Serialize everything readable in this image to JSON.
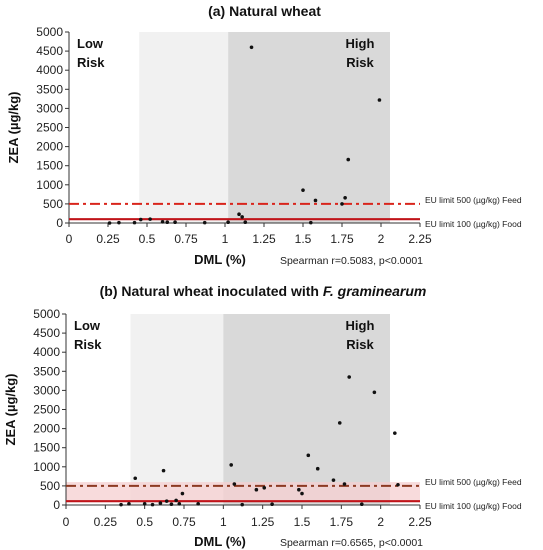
{
  "colors": {
    "low_zone": "#f1f1f1",
    "high_zone": "#d9d9d9",
    "feed_limit": "#d9251c",
    "food_limit": "#c0141a",
    "points": "#111111",
    "axis": "#333333",
    "band_b": "#f6cfd0"
  },
  "chart_data": [
    {
      "type": "scatter",
      "title_pre": "(a) Natural wheat",
      "title_italic": "",
      "xlabel": "DML (%)",
      "ylabel": "ZEA (µg/kg)",
      "xlim": [
        0,
        2.25
      ],
      "ylim": [
        0,
        5000
      ],
      "xticks": [
        "0",
        "0.25",
        "0.5",
        "0.75",
        "1",
        "1.25",
        "1.5",
        "1.75",
        "2",
        "2.25"
      ],
      "xtick_values": [
        0,
        0.25,
        0.5,
        0.75,
        1,
        1.25,
        1.5,
        1.75,
        2,
        2.25
      ],
      "yticks": [
        "0",
        "500",
        "1000",
        "1500",
        "2000",
        "2500",
        "3000",
        "3500",
        "4000",
        "4500",
        "5000"
      ],
      "ytick_values": [
        0,
        500,
        1000,
        1500,
        2000,
        2500,
        3000,
        3500,
        4000,
        4500,
        5000
      ],
      "zones": {
        "low_end": 0.45,
        "high_start": 1.02,
        "low_label": "Low Risk",
        "high_label": "High Risk"
      },
      "limits": [
        {
          "value": 500,
          "label": "EU limit 500 (µg/kg) Feed",
          "style": "dashdot"
        },
        {
          "value": 100,
          "label": "EU limit 100 (µg/kg) Food",
          "style": "solid"
        }
      ],
      "band": null,
      "stat": "Spearman r=0.5083, p<0.0001",
      "points": [
        [
          0.26,
          0
        ],
        [
          0.32,
          10
        ],
        [
          0.42,
          10
        ],
        [
          0.46,
          90
        ],
        [
          0.52,
          100
        ],
        [
          0.6,
          30
        ],
        [
          0.63,
          20
        ],
        [
          0.68,
          20
        ],
        [
          0.87,
          10
        ],
        [
          1.02,
          20
        ],
        [
          1.09,
          230
        ],
        [
          1.11,
          160
        ],
        [
          1.13,
          20
        ],
        [
          1.17,
          4600
        ],
        [
          1.5,
          860
        ],
        [
          1.55,
          10
        ],
        [
          1.58,
          590
        ],
        [
          1.75,
          500
        ],
        [
          1.77,
          660
        ],
        [
          1.79,
          1660
        ],
        [
          1.99,
          3220
        ]
      ]
    },
    {
      "type": "scatter",
      "title_pre": "(b) Natural wheat inoculated with ",
      "title_italic": "F. graminearum",
      "xlabel": "DML (%)",
      "ylabel": "ZEA (µg/kg)",
      "xlim": [
        0,
        2.25
      ],
      "ylim": [
        0,
        5000
      ],
      "xticks": [
        "0",
        "0.25",
        "0.5",
        "0.75",
        "1",
        "1.25",
        "1.5",
        "1.75",
        "2",
        "2.25"
      ],
      "xtick_values": [
        0,
        0.25,
        0.5,
        0.75,
        1,
        1.25,
        1.5,
        1.75,
        2,
        2.25
      ],
      "yticks": [
        "0",
        "500",
        "1000",
        "1500",
        "2000",
        "2500",
        "3000",
        "3500",
        "4000",
        "4500",
        "5000"
      ],
      "ytick_values": [
        0,
        500,
        1000,
        1500,
        2000,
        2500,
        3000,
        3500,
        4000,
        4500,
        5000
      ],
      "zones": {
        "low_end": 0.41,
        "high_start": 1.0,
        "low_label": "Low Risk",
        "high_label": "High Risk"
      },
      "limits": [
        {
          "value": 500,
          "label": "EU limit 500 (µg/kg) Feed",
          "style": "dashdot"
        },
        {
          "value": 100,
          "label": "EU limit 100 (µg/kg) Food",
          "style": "solid"
        }
      ],
      "band": [
        100,
        600
      ],
      "stat": "Spearman r=0.6565, p<0.0001",
      "points": [
        [
          0.35,
          10
        ],
        [
          0.4,
          30
        ],
        [
          0.44,
          700
        ],
        [
          0.5,
          30
        ],
        [
          0.55,
          10
        ],
        [
          0.6,
          50
        ],
        [
          0.62,
          900
        ],
        [
          0.64,
          100
        ],
        [
          0.67,
          20
        ],
        [
          0.7,
          120
        ],
        [
          0.72,
          30
        ],
        [
          0.74,
          300
        ],
        [
          0.84,
          30
        ],
        [
          1.05,
          1050
        ],
        [
          1.07,
          550
        ],
        [
          1.12,
          10
        ],
        [
          1.21,
          400
        ],
        [
          1.26,
          450
        ],
        [
          1.31,
          20
        ],
        [
          1.48,
          400
        ],
        [
          1.5,
          300
        ],
        [
          1.54,
          1300
        ],
        [
          1.6,
          950
        ],
        [
          1.7,
          650
        ],
        [
          1.74,
          2150
        ],
        [
          1.77,
          550
        ],
        [
          1.8,
          3350
        ],
        [
          1.88,
          20
        ],
        [
          1.96,
          2950
        ],
        [
          2.09,
          1880
        ],
        [
          2.11,
          530
        ]
      ]
    }
  ]
}
